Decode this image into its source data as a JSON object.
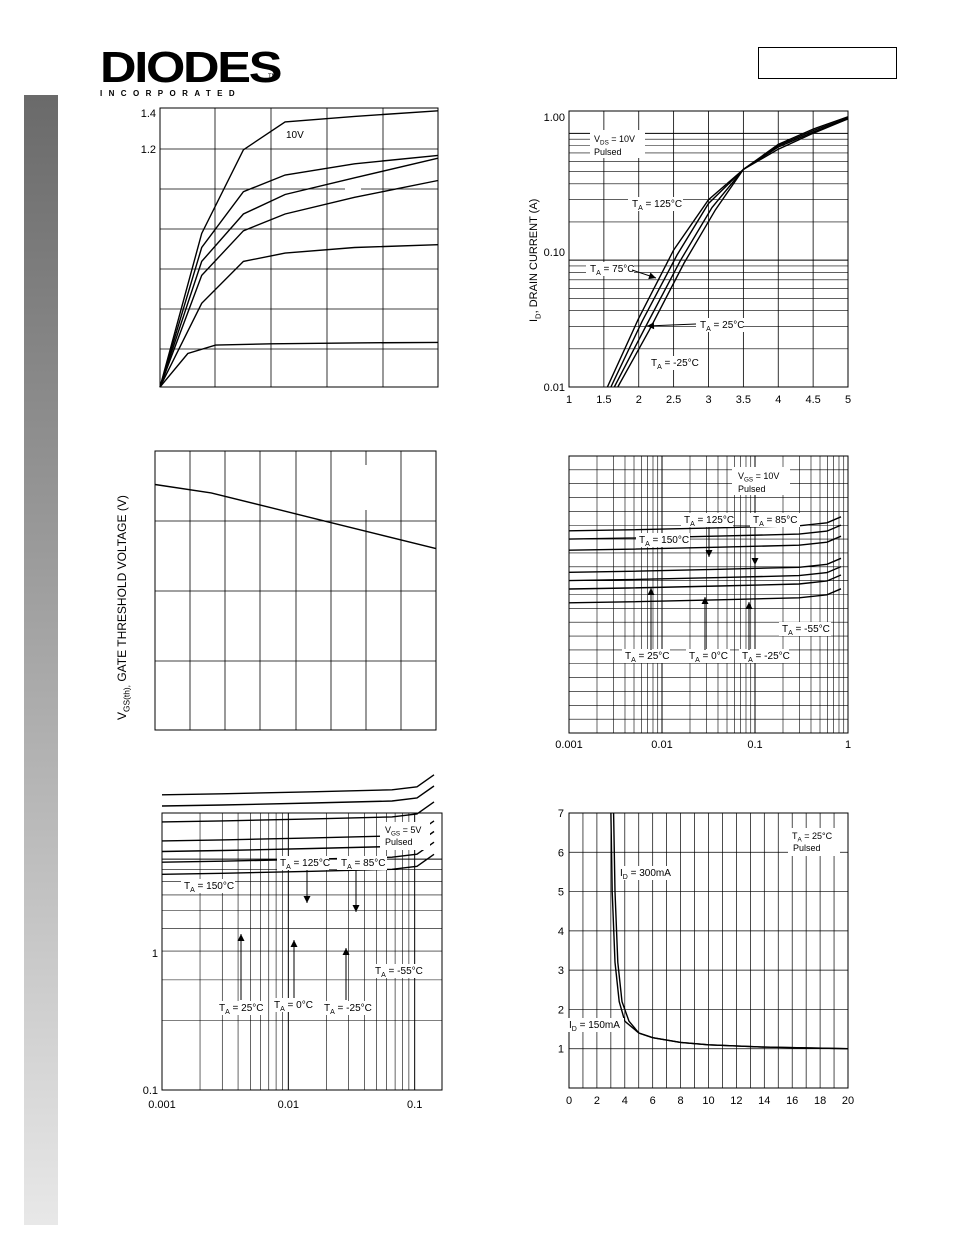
{
  "header": {
    "logo_main": "DIODES",
    "logo_sub": "INCORPORATED",
    "logo_tm": "TM"
  },
  "chart_data": [
    {
      "id": "c1",
      "type": "line",
      "y_ticks": [
        "1.4",
        "1.2"
      ],
      "annotations": [
        "10V"
      ],
      "series": [
        {
          "values": [
            [
              0,
              0
            ],
            [
              0.15,
              0.55
            ],
            [
              0.3,
              0.85
            ],
            [
              0.45,
              0.95
            ],
            [
              0.7,
              0.97
            ],
            [
              1,
              0.99
            ]
          ]
        },
        {
          "values": [
            [
              0,
              0
            ],
            [
              0.15,
              0.5
            ],
            [
              0.3,
              0.7
            ],
            [
              0.45,
              0.76
            ],
            [
              0.7,
              0.8
            ],
            [
              1,
              0.83
            ]
          ]
        },
        {
          "values": [
            [
              0,
              0
            ],
            [
              0.15,
              0.45
            ],
            [
              0.3,
              0.62
            ],
            [
              0.45,
              0.69
            ],
            [
              0.7,
              0.75
            ],
            [
              1,
              0.82
            ]
          ]
        },
        {
          "values": [
            [
              0,
              0
            ],
            [
              0.15,
              0.4
            ],
            [
              0.3,
              0.56
            ],
            [
              0.45,
              0.62
            ],
            [
              0.7,
              0.68
            ],
            [
              1,
              0.74
            ]
          ]
        },
        {
          "values": [
            [
              0,
              0
            ],
            [
              0.15,
              0.3
            ],
            [
              0.3,
              0.45
            ],
            [
              0.45,
              0.48
            ],
            [
              0.7,
              0.5
            ],
            [
              1,
              0.51
            ]
          ]
        },
        {
          "values": [
            [
              0,
              0
            ],
            [
              0.1,
              0.12
            ],
            [
              0.2,
              0.15
            ],
            [
              0.4,
              0.155
            ],
            [
              0.7,
              0.158
            ],
            [
              1,
              0.16
            ]
          ]
        }
      ]
    },
    {
      "id": "c2",
      "type": "line",
      "ylabel_main": "I",
      "ylabel_sub": "D",
      "ylabel_rest": ", DRAIN CURRENT (A)",
      "x_ticks": [
        "1",
        "1.5",
        "2",
        "2.5",
        "3",
        "3.5",
        "4",
        "4.5",
        "5"
      ],
      "y_ticks": [
        "1.00",
        "0.10",
        "0.01"
      ],
      "xlim": [
        1,
        5
      ],
      "ylim": [
        0.01,
        1.5
      ],
      "yscale": "log",
      "annotations": [
        {
          "main": "V",
          "sub": "DS",
          "rest": " = 10V",
          "line2": "Pulsed"
        },
        {
          "main": "T",
          "sub": "A",
          "rest": " = 125°C"
        },
        {
          "main": "T",
          "sub": "A",
          "rest": " = 75°C"
        },
        {
          "main": "T",
          "sub": "A",
          "rest": " = 25°C"
        },
        {
          "main": "T",
          "sub": "A",
          "rest": " = -25°C"
        }
      ],
      "series": [
        {
          "name": "T_A = 125°C",
          "x": [
            1.55,
            2.0,
            2.5,
            3.0,
            3.5,
            4.0,
            4.5,
            5.0
          ],
          "y": [
            0.01,
            0.035,
            0.12,
            0.3,
            0.52,
            0.75,
            1.0,
            1.3
          ]
        },
        {
          "name": "T_A = 75°C",
          "x": [
            1.6,
            2.05,
            2.55,
            3.0,
            3.5,
            4.0,
            4.5,
            5.0
          ],
          "y": [
            0.01,
            0.033,
            0.11,
            0.28,
            0.52,
            0.78,
            1.02,
            1.3
          ]
        },
        {
          "name": "T_A = 25°C",
          "x": [
            1.65,
            2.1,
            2.6,
            3.05,
            3.5,
            4.0,
            4.5,
            5.0
          ],
          "y": [
            0.01,
            0.03,
            0.1,
            0.26,
            0.52,
            0.8,
            1.05,
            1.32
          ]
        },
        {
          "name": "T_A = -25°C",
          "x": [
            1.7,
            2.15,
            2.65,
            3.1,
            3.5,
            4.0,
            4.5,
            5.0
          ],
          "y": [
            0.01,
            0.028,
            0.095,
            0.25,
            0.52,
            0.82,
            1.08,
            1.35
          ]
        }
      ]
    },
    {
      "id": "c3",
      "type": "line",
      "ylabel_main": "V",
      "ylabel_sub": "GS(th),",
      "ylabel_rest": " GATE THRESHOLD VOLTAGE (V)",
      "series": [
        {
          "values": [
            [
              0,
              0.88
            ],
            [
              0.2,
              0.85
            ],
            [
              0.4,
              0.8
            ],
            [
              0.6,
              0.75
            ],
            [
              0.8,
              0.7
            ],
            [
              1,
              0.65
            ]
          ]
        }
      ]
    },
    {
      "id": "c4",
      "type": "line",
      "x_ticks": [
        "0.001",
        "0.01",
        "0.1",
        "1"
      ],
      "xscale": "log",
      "xlim": [
        0.001,
        1
      ],
      "annotations": [
        {
          "main": "V",
          "sub": "GS",
          "rest": " = 10V",
          "line2": "Pulsed"
        },
        {
          "main": "T",
          "sub": "A",
          "rest": " = 125°C"
        },
        {
          "main": "T",
          "sub": "A",
          "rest": " = 85°C"
        },
        {
          "main": "T",
          "sub": "A",
          "rest": " = 150°C"
        },
        {
          "main": "T",
          "sub": "A",
          "rest": " = -55°C"
        },
        {
          "main": "T",
          "sub": "A",
          "rest": " = 25°C"
        },
        {
          "main": "T",
          "sub": "A",
          "rest": " = 0°C"
        },
        {
          "main": "T",
          "sub": "A",
          "rest": " = -25°C"
        }
      ],
      "series": [
        {
          "name": "T_A = 150°C",
          "level": 0.73
        },
        {
          "name": "T_A = 125°C",
          "level": 0.7
        },
        {
          "name": "T_A = 85°C",
          "level": 0.66
        },
        {
          "name": "T_A = 25°C",
          "level": 0.58
        },
        {
          "name": "T_A = 0°C",
          "level": 0.55
        },
        {
          "name": "T_A = -25°C",
          "level": 0.52
        },
        {
          "name": "T_A = -55°C",
          "level": 0.47
        }
      ]
    },
    {
      "id": "c5",
      "type": "line",
      "x_ticks": [
        "0.001",
        "0.01",
        "0.1"
      ],
      "y_ticks": [
        "1",
        "0.1"
      ],
      "xscale": "log",
      "yscale": "log",
      "annotations": [
        {
          "main": "V",
          "sub": "GS",
          "rest": " = 5V",
          "line2": "Pulsed"
        },
        {
          "main": "T",
          "sub": "A",
          "rest": " = 125°C"
        },
        {
          "main": "T",
          "sub": "A",
          "rest": " = 85°C"
        },
        {
          "main": "T",
          "sub": "A",
          "rest": " = 150°C"
        },
        {
          "main": "T",
          "sub": "A",
          "rest": " = -55°C"
        },
        {
          "main": "T",
          "sub": "A",
          "rest": " = 25°C"
        },
        {
          "main": "T",
          "sub": "A",
          "rest": " = 0°C"
        },
        {
          "main": "T",
          "sub": "A",
          "rest": " = -25°C"
        }
      ],
      "series": [
        {
          "name": "T_A = 150°C",
          "value": 1.9
        },
        {
          "name": "T_A = 125°C",
          "value": 1.7
        },
        {
          "name": "T_A = 85°C",
          "value": 1.45
        },
        {
          "name": "T_A = 25°C",
          "value": 1.2
        },
        {
          "name": "T_A = 0°C",
          "value": 1.08
        },
        {
          "name": "T_A = -25°C",
          "value": 0.97
        },
        {
          "name": "T_A = -55°C",
          "value": 0.86
        }
      ]
    },
    {
      "id": "c6",
      "type": "line",
      "x_ticks": [
        "0",
        "2",
        "4",
        "6",
        "8",
        "10",
        "12",
        "14",
        "16",
        "18",
        "20"
      ],
      "y_ticks": [
        "7",
        "6",
        "5",
        "4",
        "3",
        "2",
        "1"
      ],
      "xlim": [
        0,
        20
      ],
      "ylim": [
        0,
        7
      ],
      "annotations": [
        {
          "main": "T",
          "sub": "A",
          "rest": " = 25°C",
          "line2": "Pulsed"
        },
        {
          "main": "I",
          "sub": "D",
          "rest": " = 300mA"
        },
        {
          "main": "I",
          "sub": "D",
          "rest": " = 150mA"
        }
      ],
      "series": [
        {
          "name": "I_D = 300mA",
          "x": [
            3.0,
            3.1,
            3.3,
            3.6,
            4.0,
            5.0,
            6.0,
            8.0,
            10,
            14,
            20
          ],
          "y": [
            7,
            5.0,
            3.2,
            2.2,
            1.7,
            1.4,
            1.28,
            1.16,
            1.1,
            1.04,
            1.0
          ]
        },
        {
          "name": "I_D = 150mA",
          "x": [
            3.2,
            3.3,
            3.5,
            3.8,
            4.3,
            5.0,
            6.0,
            8.0,
            10,
            14,
            20
          ],
          "y": [
            7,
            5.0,
            3.2,
            2.2,
            1.7,
            1.4,
            1.28,
            1.16,
            1.1,
            1.04,
            1.0
          ]
        }
      ]
    }
  ]
}
